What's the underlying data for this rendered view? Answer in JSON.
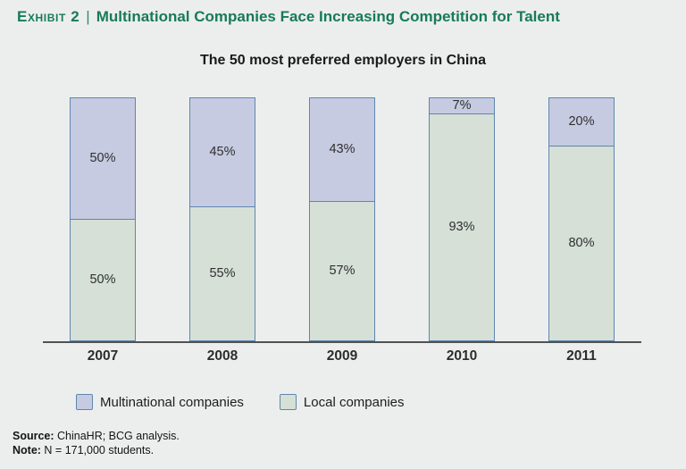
{
  "exhibit": {
    "label": "Exhibit 2",
    "separator": "|",
    "headline": "Multinational Companies Face Increasing Competition for Talent",
    "accent_color": "#177b57"
  },
  "chart_data": {
    "type": "bar",
    "variant": "stacked-100-percent",
    "title": "The 50 most preferred employers in China",
    "categories": [
      "2007",
      "2008",
      "2009",
      "2010",
      "2011"
    ],
    "series": [
      {
        "name": "Multinational companies",
        "color": "#c7cbe1",
        "values": [
          50,
          45,
          43,
          7,
          20
        ]
      },
      {
        "name": "Local companies",
        "color": "#d6e0d7",
        "values": [
          50,
          55,
          57,
          93,
          80
        ]
      }
    ],
    "stack_order": "top-to-bottom",
    "value_suffix": "%",
    "ylim": [
      0,
      100
    ],
    "grid": false,
    "bar_border_color": "#5d87ad",
    "axis_color": "#4f5254",
    "legend_position": "bottom"
  },
  "legend": {
    "items": [
      {
        "label": "Multinational companies",
        "color": "#c7cbe1"
      },
      {
        "label": "Local companies",
        "color": "#d6e0d7"
      }
    ]
  },
  "footer": {
    "source_label": "Source:",
    "source_text": " ChinaHR; BCG analysis.",
    "note_label": "Note:",
    "note_text": " N = 171,000 students."
  }
}
